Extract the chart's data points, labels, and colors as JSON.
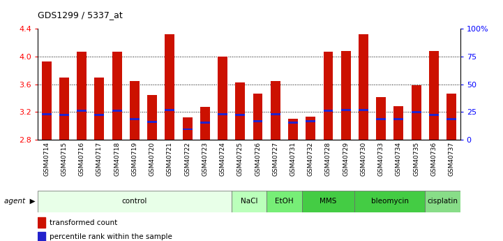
{
  "title": "GDS1299 / 5337_at",
  "samples": [
    "GSM40714",
    "GSM40715",
    "GSM40716",
    "GSM40717",
    "GSM40718",
    "GSM40719",
    "GSM40720",
    "GSM40721",
    "GSM40722",
    "GSM40723",
    "GSM40724",
    "GSM40725",
    "GSM40726",
    "GSM40727",
    "GSM40731",
    "GSM40732",
    "GSM40728",
    "GSM40729",
    "GSM40730",
    "GSM40733",
    "GSM40734",
    "GSM40735",
    "GSM40736",
    "GSM40737"
  ],
  "red_values": [
    3.93,
    3.7,
    4.07,
    3.7,
    4.07,
    3.65,
    3.45,
    4.32,
    3.12,
    3.27,
    4.0,
    3.63,
    3.47,
    3.65,
    3.1,
    3.13,
    4.07,
    4.08,
    4.32,
    3.42,
    3.28,
    3.59,
    4.08,
    3.47
  ],
  "blue_values": [
    3.17,
    3.16,
    3.22,
    3.16,
    3.22,
    3.1,
    3.06,
    3.23,
    2.95,
    3.05,
    3.17,
    3.16,
    3.07,
    3.17,
    3.05,
    3.07,
    3.22,
    3.23,
    3.23,
    3.1,
    3.1,
    3.2,
    3.16,
    3.1
  ],
  "agents": [
    {
      "label": "control",
      "start": 0,
      "end": 11,
      "color": "#e8ffe8"
    },
    {
      "label": "NaCl",
      "start": 11,
      "end": 13,
      "color": "#bbffbb"
    },
    {
      "label": "EtOH",
      "start": 13,
      "end": 15,
      "color": "#77ee77"
    },
    {
      "label": "MMS",
      "start": 15,
      "end": 18,
      "color": "#44cc44"
    },
    {
      "label": "bleomycin",
      "start": 18,
      "end": 22,
      "color": "#44cc44"
    },
    {
      "label": "cisplatin",
      "start": 22,
      "end": 24,
      "color": "#88dd88"
    }
  ],
  "ylim_left": [
    2.8,
    4.4
  ],
  "ylim_right": [
    0,
    100
  ],
  "yticks_left": [
    2.8,
    3.2,
    3.6,
    4.0,
    4.4
  ],
  "yticks_right": [
    0,
    25,
    50,
    75,
    100
  ],
  "bar_color": "#cc1100",
  "blue_color": "#2222cc",
  "background_color": "#ffffff",
  "bar_width": 0.55
}
